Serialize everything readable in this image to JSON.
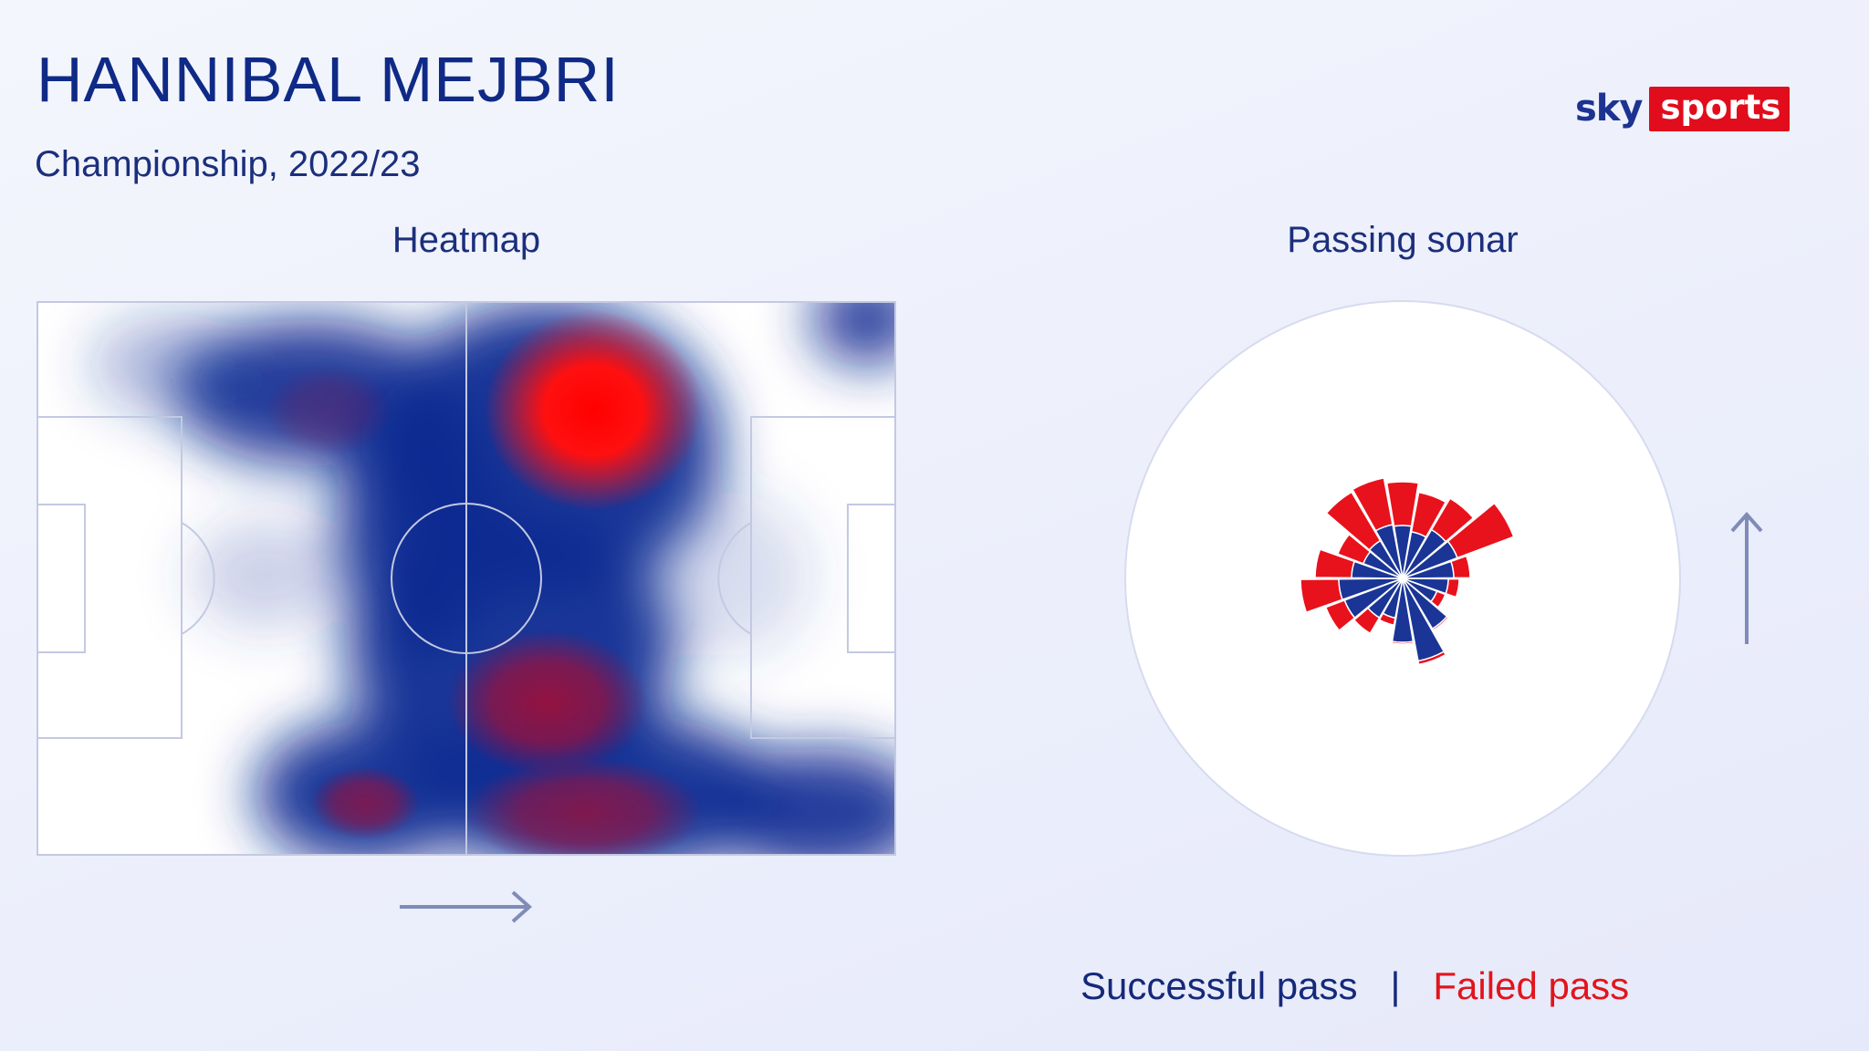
{
  "header": {
    "title": "HANNIBAL MEJBRI",
    "subtitle": "Championship, 2022/23"
  },
  "logo": {
    "sky": "sky",
    "sports": "sports",
    "brand_red": "#e10d1c",
    "brand_blue": "#1d3391"
  },
  "heatmap": {
    "title": "Heatmap",
    "direction_icon": "arrow-right-icon",
    "colors": {
      "low": "#0a2a8c",
      "mid": "#a0143c",
      "high": "#ff0000"
    }
  },
  "sonar": {
    "title": "Passing sonar",
    "direction_icon": "arrow-up-icon",
    "colors": {
      "successful": "#1a3596",
      "failed": "#e8121c"
    }
  },
  "legend": {
    "successful": "Successful pass",
    "separator": "|",
    "failed": "Failed pass"
  }
}
